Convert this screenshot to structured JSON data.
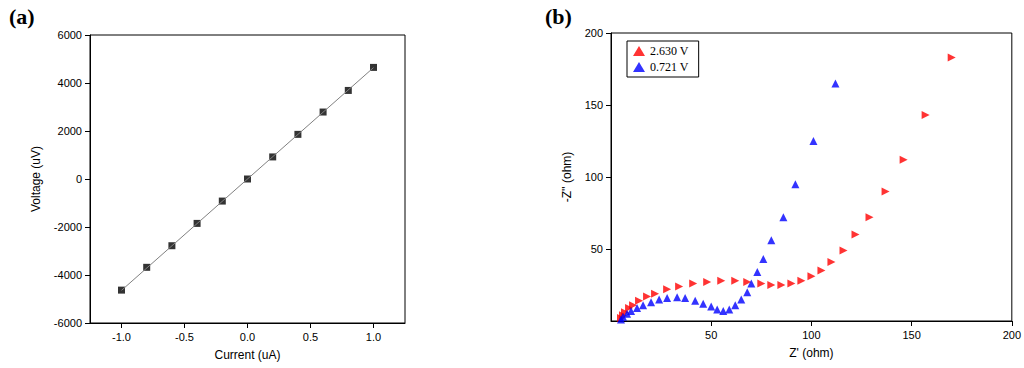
{
  "chart_data": [
    {
      "type": "scatter",
      "title": "(a)",
      "xlabel": "Current (uA)",
      "ylabel": "Voltage (uV)",
      "xlim": [
        -1.25,
        1.25
      ],
      "xticks": [
        {
          "value": -1,
          "label": "-1.0"
        },
        {
          "value": -0.5,
          "label": "-0.5"
        },
        {
          "value": 0,
          "label": "0.0"
        },
        {
          "value": 0.5,
          "label": "0.5"
        },
        {
          "value": 1,
          "label": "1.0"
        }
      ],
      "ylim": [
        -6000,
        6000
      ],
      "yticks": [
        -6000,
        -4000,
        -2000,
        0,
        2000,
        4000,
        6000
      ],
      "grid": false,
      "series": [
        {
          "type": "line",
          "color": "#808080",
          "line_style": "solid",
          "x": [
            -1,
            1
          ],
          "values": [
            -4640,
            4640
          ]
        },
        {
          "type": "scatter",
          "color": "#000000",
          "marker": "square",
          "x": [
            -1,
            -0.8,
            -0.6,
            -0.4,
            -0.2,
            0,
            0.2,
            0.4,
            0.6,
            0.8,
            1
          ],
          "values": [
            -4630,
            -3680,
            -2780,
            -1850,
            -920,
            0,
            920,
            1860,
            2790,
            3690,
            4650
          ]
        }
      ]
    },
    {
      "type": "scatter",
      "title": "(b)",
      "xlabel": "Z' (ohm)",
      "ylabel": "-Z'' (ohm)",
      "xlim": [
        0,
        200
      ],
      "xticks": [
        50,
        100,
        150,
        200
      ],
      "ylim": [
        0,
        200
      ],
      "yticks": [
        50,
        100,
        150,
        200
      ],
      "grid": false,
      "legend": "top-left",
      "series": [
        {
          "name": "2.630 V",
          "color": "#ff0000",
          "marker": "triangle-right",
          "x": [
            170,
            157,
            146,
            137,
            129,
            122,
            116,
            110,
            105,
            100,
            95,
            90,
            85,
            80,
            75,
            68,
            62,
            55,
            48,
            41,
            34,
            28,
            22,
            18,
            14,
            11,
            9,
            7,
            6,
            5
          ],
          "values": [
            183,
            143,
            112,
            90,
            72,
            60,
            49,
            41,
            35,
            31,
            28,
            26,
            25,
            25,
            26,
            27,
            28,
            28,
            27,
            26,
            24,
            22,
            19,
            17,
            14,
            11,
            9,
            6,
            4,
            2
          ]
        },
        {
          "name": "0.721 V",
          "color": "#0000ff",
          "marker": "triangle",
          "x": [
            112,
            101,
            92,
            86,
            80,
            76,
            73,
            70,
            68,
            65,
            62,
            59,
            56,
            53,
            50,
            46,
            42,
            37,
            33,
            28,
            24,
            20,
            16,
            13,
            10,
            8,
            6,
            5
          ],
          "values": [
            165,
            125,
            95,
            72,
            56,
            43,
            34,
            26,
            20,
            15,
            11,
            8,
            7,
            8,
            10,
            12,
            14,
            16,
            16.5,
            16,
            15,
            13,
            11,
            9,
            7,
            5,
            3,
            1
          ]
        }
      ]
    }
  ]
}
